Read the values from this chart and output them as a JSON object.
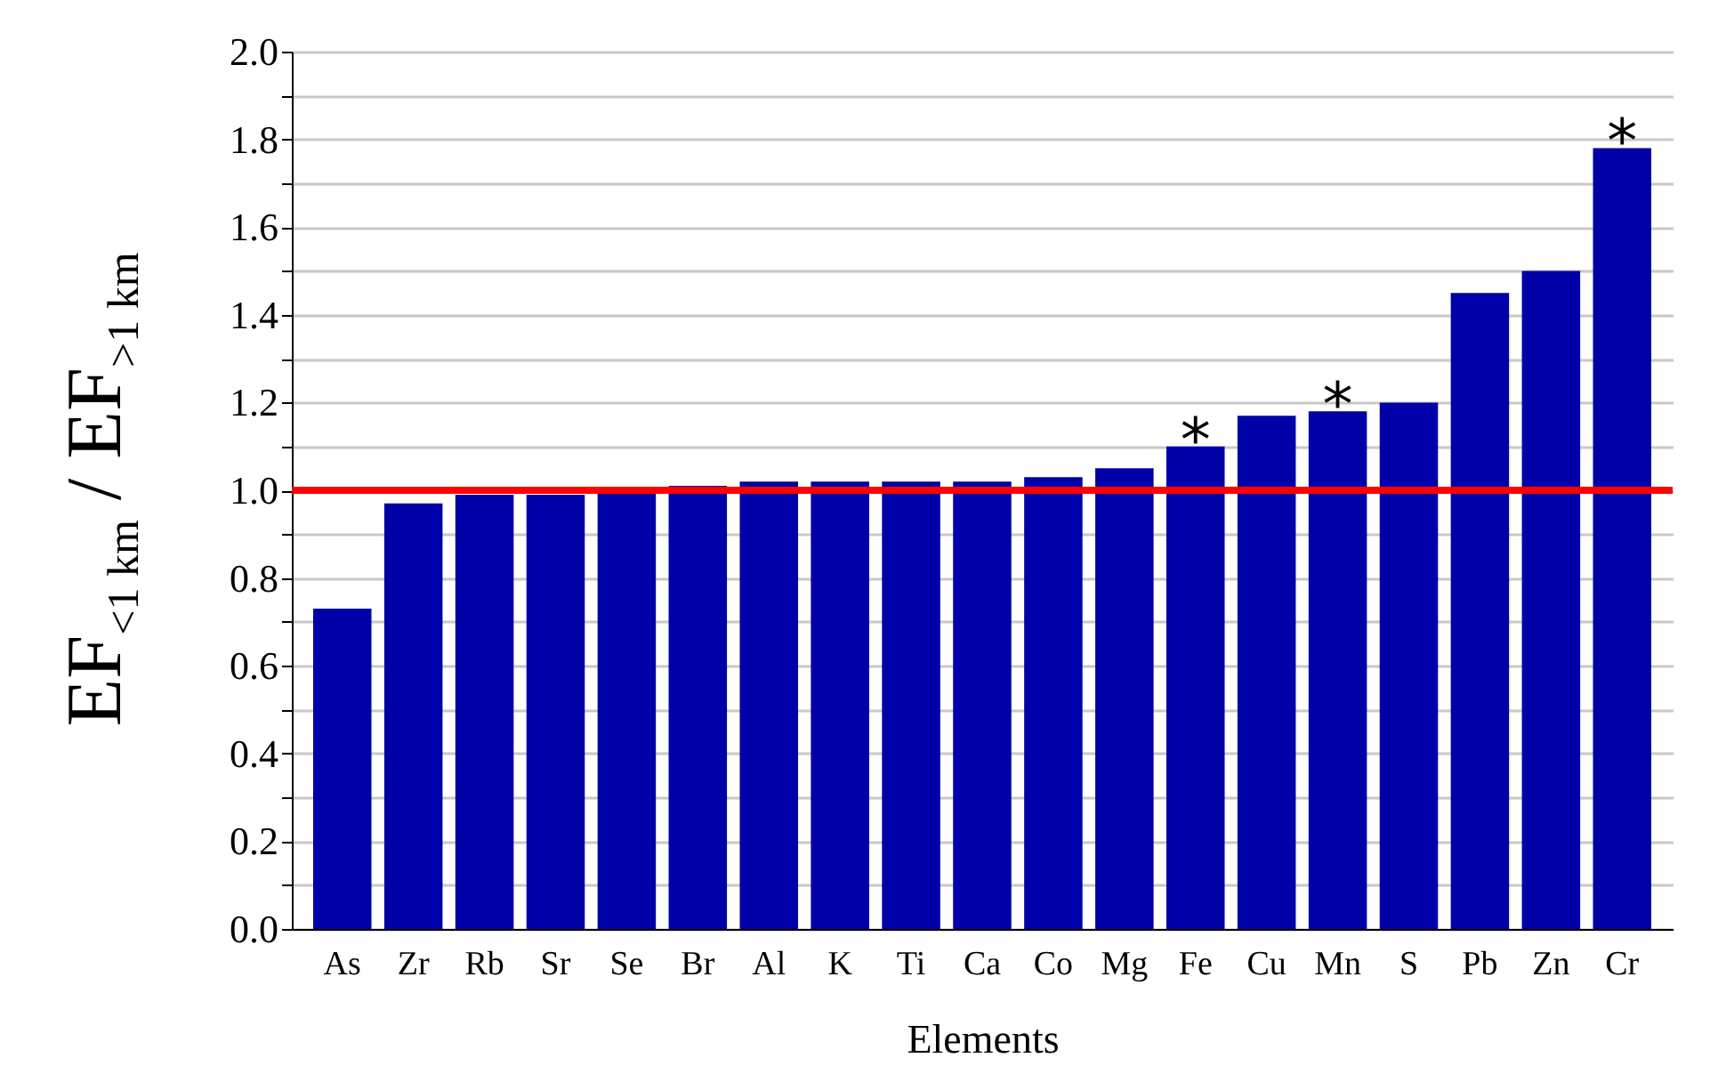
{
  "chart_data": {
    "type": "bar",
    "xlabel": "Elements",
    "ylabel": "EF$_{<1 km}$ / EF$_{>1 km}$",
    "categories": [
      "As",
      "Zr",
      "Rb",
      "Sr",
      "Se",
      "Br",
      "Al",
      "K",
      "Ti",
      "Ca",
      "Co",
      "Mg",
      "Fe",
      "Cu",
      "Mn",
      "S",
      "Pb",
      "Zn",
      "Cr"
    ],
    "values": [
      0.73,
      0.97,
      0.99,
      0.99,
      1.0,
      1.01,
      1.02,
      1.02,
      1.02,
      1.02,
      1.03,
      1.05,
      1.1,
      1.17,
      1.18,
      1.2,
      1.45,
      1.5,
      1.78
    ],
    "color": "#0000a8",
    "ylim": [
      0,
      2
    ],
    "yticks": [
      {
        "value": 0,
        "label": "0.0"
      },
      {
        "value": 0.1,
        "label": null
      },
      0.2,
      {
        "value": 0.3,
        "label": null
      },
      0.4,
      {
        "value": 0.5,
        "label": null
      },
      0.6,
      {
        "value": 0.7,
        "label": null
      },
      0.8,
      {
        "value": 0.9,
        "label": null
      },
      {
        "value": 1,
        "label": "1.0"
      },
      {
        "value": 1.1,
        "label": null
      },
      1.2,
      {
        "value": 1.3,
        "label": null
      },
      1.4,
      {
        "value": 1.5,
        "label": null
      },
      1.6,
      {
        "value": 1.7,
        "label": null
      },
      1.8,
      {
        "value": 1.9,
        "label": null
      },
      {
        "value": 2,
        "label": "2.0"
      }
    ],
    "grid": "y",
    "ref_lines": [
      {
        "axis": "y",
        "value": 1.0,
        "color": "#ff0000"
      }
    ],
    "annotations": [
      {
        "text": "*",
        "x": "Fe",
        "y": 1.1
      },
      {
        "text": "*",
        "x": "Mn",
        "y": 1.18
      },
      {
        "text": "*",
        "x": "Cr",
        "y": 1.78
      }
    ]
  }
}
